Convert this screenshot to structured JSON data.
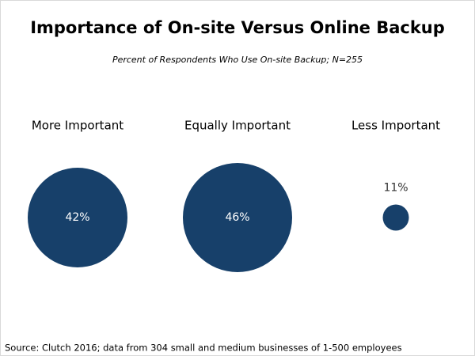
{
  "chart_data": {
    "type": "bubble",
    "title": "Importance of On-site Versus Online Backup",
    "subtitle": "Percent of Respondents Who Use On-site Backup; N=255",
    "categories": [
      "More Important",
      "Equally Important",
      "Less Important"
    ],
    "values": [
      42,
      46,
      11
    ],
    "value_labels": [
      "42%",
      "46%",
      "11%"
    ],
    "color": "#17406a",
    "source": "Source: Clutch 2016; data from 304 small and medium businesses of 1-500 employees"
  }
}
